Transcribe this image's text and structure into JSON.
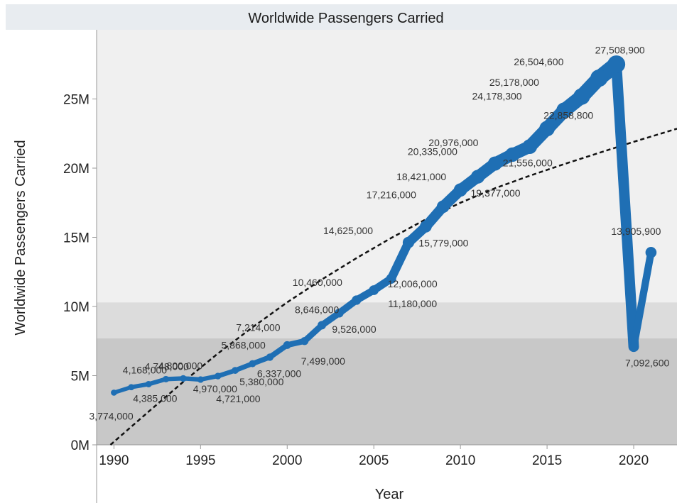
{
  "chart_data": {
    "type": "line",
    "title": "Worldwide Passengers Carried",
    "xlabel": "Year",
    "ylabel": "Worldwide Passengers Carried",
    "xlim": [
      1989,
      2022.5
    ],
    "ylim": [
      0,
      30000000
    ],
    "x_ticks": [
      1990,
      1995,
      2000,
      2005,
      2010,
      2015,
      2020
    ],
    "y_ticks": [
      {
        "value": 0,
        "label": "0M"
      },
      {
        "value": 5000000,
        "label": "5M"
      },
      {
        "value": 10000000,
        "label": "10M"
      },
      {
        "value": 15000000,
        "label": "15M"
      },
      {
        "value": 20000000,
        "label": "20M"
      },
      {
        "value": 25000000,
        "label": "25M"
      }
    ],
    "series": [
      {
        "color": "#1f6fb4",
        "x": [
          1990,
          1991,
          1992,
          1993,
          1994,
          1995,
          1996,
          1997,
          1998,
          1999,
          2000,
          2001,
          2002,
          2003,
          2004,
          2005,
          2006,
          2007,
          2008,
          2009,
          2010,
          2011,
          2012,
          2013,
          2014,
          2015,
          2016,
          2017,
          2018,
          2019,
          2020,
          2021
        ],
        "y": [
          3774000,
          4168000,
          4385000,
          4748000,
          4800000,
          4721000,
          4970000,
          5380000,
          5868000,
          6337000,
          7214000,
          7499000,
          8646000,
          9526000,
          10460000,
          11180000,
          12006000,
          14625000,
          15779000,
          17216000,
          18421000,
          19377000,
          20335000,
          20976000,
          21556000,
          22858800,
          24178300,
          25178000,
          26504600,
          27508900,
          7092600,
          13905900
        ],
        "labels": [
          "3,774,000",
          "4,168,000",
          "4,385,000",
          "4,748,000",
          "4,800,000",
          "4,721,000",
          "4,970,000",
          "5,380,000",
          "5,868,000",
          "6,337,000",
          "7,214,000",
          "7,499,000",
          "8,646,000",
          "9,526,000",
          "10,460,000",
          "11,180,000",
          "12,006,000",
          "14,625,000",
          "15,779,000",
          "17,216,000",
          "18,421,000",
          "19,377,000",
          "20,335,000",
          "20,976,000",
          "21,556,000",
          "22,858,800",
          "24,178,300",
          "25,178,000",
          "26,504,600",
          "27,508,900",
          "7,092,600",
          "13,905,900"
        ]
      }
    ],
    "trend_line": {
      "style": "dashed",
      "color": "#111111",
      "x": [
        1989.8,
        1992,
        1994,
        1996,
        1998,
        2000,
        2002,
        2004,
        2006,
        2008,
        2010,
        2012,
        2014,
        2016,
        2018,
        2020,
        2022.5
      ],
      "y": [
        0,
        2400000,
        4550000,
        6600000,
        8500000,
        10300000,
        11950000,
        13500000,
        14950000,
        16300000,
        17500000,
        18550000,
        19450000,
        20300000,
        21100000,
        21900000,
        22850000
      ]
    },
    "bands": [
      {
        "from": 0,
        "to": 7700000,
        "color": "#c8c8c8"
      },
      {
        "from": 7700000,
        "to": 10300000,
        "color": "#dcdcdc"
      },
      {
        "from": 10300000,
        "to": 30000000,
        "color": "#f0f0f0"
      }
    ]
  }
}
